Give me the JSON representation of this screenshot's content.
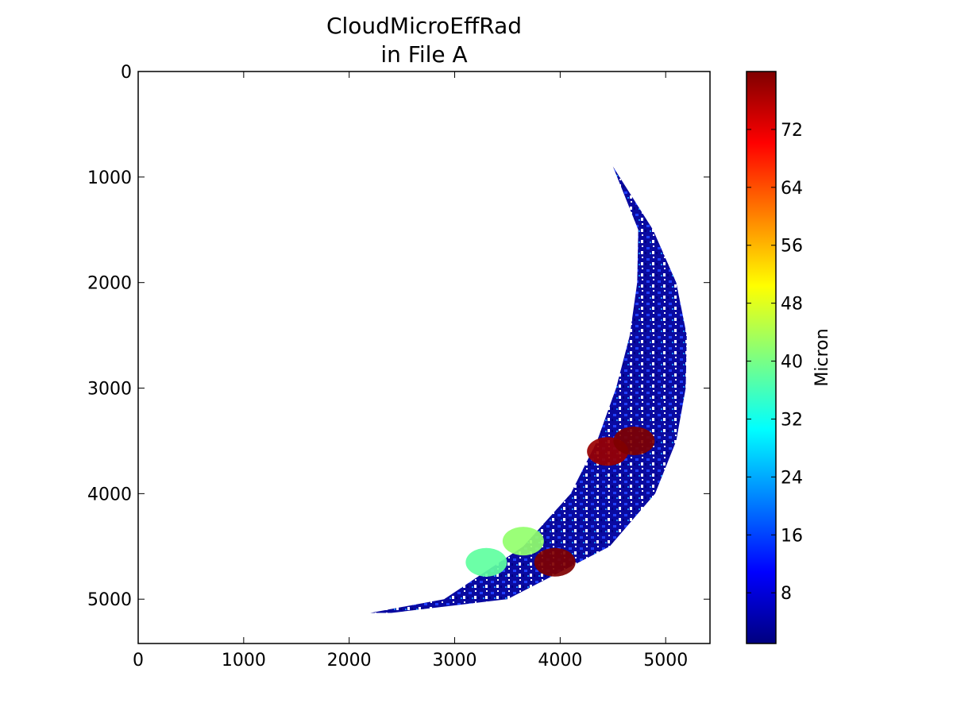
{
  "chart_data": {
    "type": "heatmap",
    "title_lines": [
      "CloudMicroEffRad",
      "in File A"
    ],
    "xlim": [
      0,
      5420
    ],
    "ylim": [
      5420,
      0
    ],
    "x_ticks": [
      0,
      1000,
      2000,
      3000,
      4000,
      5000
    ],
    "y_ticks": [
      0,
      1000,
      2000,
      3000,
      4000,
      5000
    ],
    "colorbar": {
      "label": "Micron",
      "range": [
        1,
        80
      ],
      "ticks": [
        8,
        16,
        24,
        32,
        40,
        48,
        56,
        64,
        72
      ],
      "colormap": "jet"
    },
    "data_region": {
      "shape": "crescent",
      "outer_arc_x_at_y": [
        [
          900,
          4500
        ],
        [
          1500,
          4880
        ],
        [
          2000,
          5100
        ],
        [
          2500,
          5200
        ],
        [
          3000,
          5190
        ],
        [
          3500,
          5100
        ],
        [
          4000,
          4900
        ],
        [
          4500,
          4470
        ],
        [
          5000,
          3500
        ],
        [
          5130,
          2400
        ]
      ],
      "inner_arc_x_at_y": [
        [
          900,
          4500
        ],
        [
          1500,
          4740
        ],
        [
          2000,
          4730
        ],
        [
          2500,
          4660
        ],
        [
          3000,
          4530
        ],
        [
          3500,
          4350
        ],
        [
          4000,
          4100
        ],
        [
          4500,
          3650
        ],
        [
          5000,
          2900
        ],
        [
          5130,
          2200
        ]
      ],
      "dominant_values_micron": [
        5,
        12,
        80
      ],
      "notable_regions": [
        {
          "description": "large-particle patch",
          "x": 3950,
          "y": 4650,
          "value": 80
        },
        {
          "description": "large-particle patch",
          "x": 4450,
          "y": 3600,
          "value": 78
        },
        {
          "description": "large-particle patch",
          "x": 4700,
          "y": 3500,
          "value": 80
        },
        {
          "description": "medium patch",
          "x": 3650,
          "y": 4450,
          "value": 42
        },
        {
          "description": "medium patch",
          "x": 3300,
          "y": 4650,
          "value": 38
        }
      ]
    }
  }
}
